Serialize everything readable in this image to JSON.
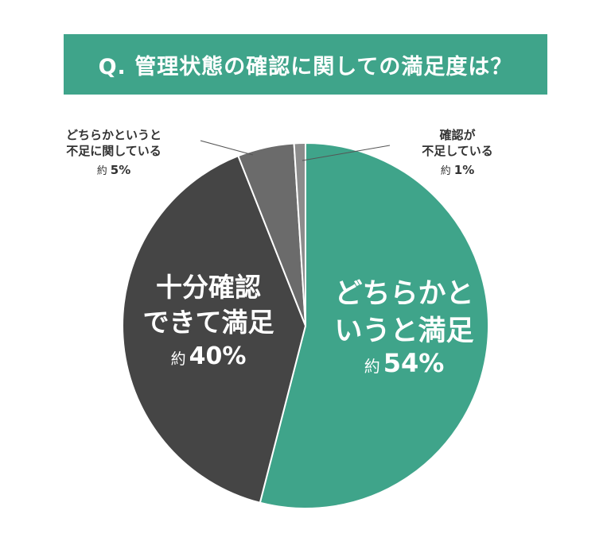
{
  "chart_data": {
    "type": "pie",
    "title": "Q. 管理状態の確認に関しての満足度は？",
    "slices": [
      {
        "name": "どちらかというと満足",
        "label_lines": [
          "どちらかと",
          "いうと満足"
        ],
        "value_prefix": "約",
        "value_text": "54%",
        "value": 54,
        "color": "#3fa48a",
        "label_position": "inside"
      },
      {
        "name": "十分確認できて満足",
        "label_lines": [
          "十分確認",
          "できて満足"
        ],
        "value_prefix": "約",
        "value_text": "40%",
        "value": 40,
        "color": "#454545",
        "label_position": "inside"
      },
      {
        "name": "どちらかというと不足に関している",
        "label_lines": [
          "どちらかというと",
          "不足に関している"
        ],
        "value_prefix": "約",
        "value_text": "5%",
        "value": 5,
        "color": "#6b6b6b",
        "label_position": "outside-left"
      },
      {
        "name": "確認が不足している",
        "label_lines": [
          "確認が",
          "不足している"
        ],
        "value_prefix": "約",
        "value_text": "1%",
        "value": 1,
        "color": "#8c8c8c",
        "label_position": "outside-right"
      }
    ],
    "legend": "none",
    "start": "top",
    "direction": "clockwise",
    "slice_border_color": "#ffffff"
  }
}
